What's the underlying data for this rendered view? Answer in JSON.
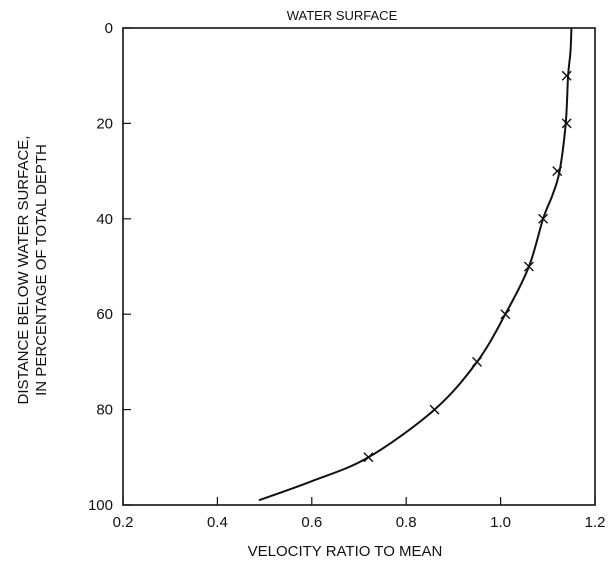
{
  "chart_data": {
    "type": "line",
    "top_label": "WATER SURFACE",
    "xlabel": "VELOCITY RATIO TO MEAN",
    "ylabel_line1": "DISTANCE BELOW WATER SURFACE,",
    "ylabel_line2": "IN PERCENTAGE OF TOTAL DEPTH",
    "xlim": [
      0.2,
      1.2
    ],
    "ylim": [
      0,
      100
    ],
    "y_inverted": true,
    "grid": false,
    "x_ticks": [
      0.2,
      0.4,
      0.6,
      0.8,
      1.0,
      1.2
    ],
    "x_tick_labels": [
      "0.2",
      "0.4",
      "0.6",
      "0.8",
      "1.0",
      "1.2"
    ],
    "y_ticks": [
      0,
      20,
      40,
      60,
      80,
      100
    ],
    "y_tick_labels": [
      "0",
      "20",
      "40",
      "60",
      "80",
      "100"
    ],
    "series": [
      {
        "marker": "x",
        "x": [
          1.14,
          1.14,
          1.12,
          1.09,
          1.06,
          1.01,
          0.95,
          0.86,
          0.72
        ],
        "y": [
          10,
          20,
          30,
          40,
          50,
          60,
          70,
          80,
          90
        ]
      }
    ],
    "curve": {
      "x": [
        1.15,
        1.148,
        1.143,
        1.138,
        1.125,
        1.11,
        1.09,
        1.06,
        1.01,
        0.95,
        0.86,
        0.72,
        0.6,
        0.488
      ],
      "y": [
        0,
        5,
        10,
        20,
        30,
        35,
        40,
        50,
        60,
        70,
        80,
        90,
        95,
        99
      ]
    }
  }
}
